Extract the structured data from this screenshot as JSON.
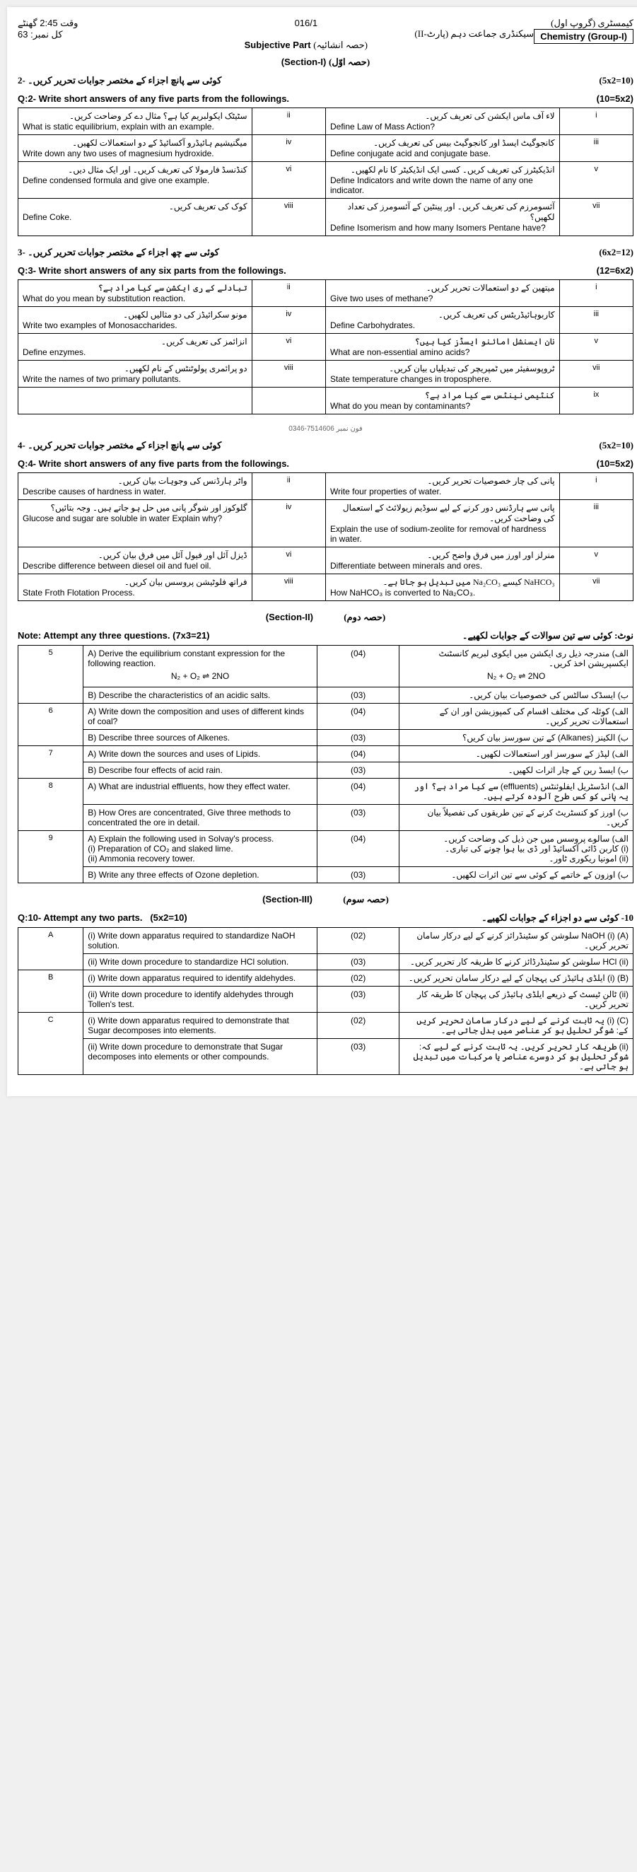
{
  "header": {
    "time_label": "وقت",
    "time": "2:45 گھنٹے",
    "total_label": "کل نمبر",
    "total": "63",
    "code": "016/1",
    "class_urdu": "سیکنڈری جماعت دہم (پارٹ-II)",
    "subject_part": "Subjective Part",
    "subject_part_urdu": "(حصہ انشائیہ)",
    "subject": "Chemistry (Group-I)",
    "subject_urdu": "کیمسٹری (گروپ اول)",
    "section1": "(Section-I)",
    "section1_urdu": "(حصہ اوّل)"
  },
  "q2": {
    "num": "-2",
    "urdu_inst": "کوئی سے پانچ اجزاء کے مختصر جوابات تحریر کریں۔",
    "marks": "(10=5x2)",
    "eng_inst": "Q:2- Write short answers of any five parts from the followings.",
    "eng_marks": "(10=5x2)",
    "rows": [
      {
        "n1": "ii",
        "e1": "What is static equilibrium, explain with an example.",
        "u1": "سٹیٹک ایکولبریم کیا ہے؟ مثال دے کر وضاحت کریں۔",
        "n2": "i",
        "e2": "Define Law of Mass Action?",
        "u2": "لاء آف ماس ایکشن کی تعریف کریں۔"
      },
      {
        "n1": "iv",
        "e1": "Write down any two uses of magnesium hydroxide.",
        "u1": "میگنیشیم ہائیڈرو آکسائیڈ کے دو استعمالات لکھیں۔",
        "n2": "iii",
        "e2": "Define conjugate acid and conjugate base.",
        "u2": "کانجوگیٹ ایسڈ اور کانجوگیٹ بیس کی تعریف کریں۔"
      },
      {
        "n1": "vi",
        "e1": "Define condensed formula and give one example.",
        "u1": "کنڈنسڈ فارمولا کی تعریف کریں۔ اور ایک مثال دیں۔",
        "n2": "v",
        "e2": "Define Indicators and write down the name of any one indicator.",
        "u2": "انڈیکیٹرز کی تعریف کریں۔ کسی ایک انڈیکیٹر کا نام لکھیں۔"
      },
      {
        "n1": "viii",
        "e1": "Define Coke.",
        "u1": "کوک کی تعریف کریں۔",
        "n2": "vii",
        "e2": "Define Isomerism and how many Isomers Pentane have?",
        "u2": "آئسومرزم کی تعریف کریں۔ اور پینٹین کے آئسومرز کی تعداد لکھیں؟"
      }
    ]
  },
  "q3": {
    "num": "-3",
    "urdu_inst": "کوئی سے چھ اجزاء کے مختصر جوابات تحریر کریں۔",
    "marks": "(12=6x2)",
    "eng_inst": "Q:3- Write short answers of any six parts from the followings.",
    "eng_marks": "(12=6x2)",
    "rows": [
      {
        "n1": "ii",
        "e1": "What do you mean by substitution reaction.",
        "u1": "تبادلے کے ری ایکشن سے کیا مراد ہے؟",
        "n2": "i",
        "e2": "Give two uses of methane?",
        "u2": "میتھین کے دو استعمالات تحریر کریں۔"
      },
      {
        "n1": "iv",
        "e1": "Write two examples of Monosaccharides.",
        "u1": "مونو سکرائیڈز کی دو مثالیں لکھیں۔",
        "n2": "iii",
        "e2": "Define Carbohydrates.",
        "u2": "کاربوہائیڈریٹس کی تعریف کریں۔"
      },
      {
        "n1": "vi",
        "e1": "Define enzymes.",
        "u1": "انزائمز کی تعریف کریں۔",
        "n2": "v",
        "e2": "What are non-essential amino acids?",
        "u2": "نان ایسنشل امائنو ایسڈز کیا ہیں؟"
      },
      {
        "n1": "viii",
        "e1": "Write the names of two primary pollutants.",
        "u1": "دو پرائمری پولوٹنٹس کے نام لکھیں۔",
        "n2": "vii",
        "e2": "State temperature changes in troposphere.",
        "u2": "ٹروپوسفیئر میں ٹمپریچر کی تبدیلیاں بیان کریں۔"
      },
      {
        "n1": "",
        "e1": "",
        "u1": "",
        "n2": "ix",
        "e2": "What do you mean by contaminants?",
        "u2": "کنٹیمی نینٹس سے کیا مراد ہے؟"
      }
    ],
    "stamp": "0346-7514606 فون نمبر"
  },
  "q4": {
    "num": "-4",
    "urdu_inst": "کوئی سے پانچ اجزاء کے مختصر جوابات تحریر کریں۔",
    "marks": "(10=5x2)",
    "eng_inst": "Q:4- Write short answers of any five parts from the followings.",
    "eng_marks": "(10=5x2)",
    "rows": [
      {
        "n1": "ii",
        "e1": "Describe causes of hardness in water.",
        "u1": "واٹر ہارڈنس کی وجوہات بیان کریں۔",
        "n2": "i",
        "e2": "Write four properties of water.",
        "u2": "پانی کی چار خصوصیات تحریر کریں۔"
      },
      {
        "n1": "iv",
        "e1": "Glucose and sugar are soluble in water Explain why?",
        "u1": "گلوکوز اور شوگر پانی میں حل ہو جاتے ہیں۔ وجہ بتائیں؟",
        "n2": "iii",
        "e2": "Explain the use of sodium-zeolite for removal of hardness in water.",
        "u2": "پانی سے ہارڈنس دور کرنے کے لیے سوڈیم زیولائٹ کے استعمال کی وضاحت کریں۔"
      },
      {
        "n1": "vi",
        "e1": "Describe difference between diesel oil and fuel oil.",
        "u1": "ڈیزل آئل اور فیول آئل میں فرق بیان کریں۔",
        "n2": "v",
        "e2": "Differentiate between minerals and ores.",
        "u2": "منرلز اور اورز میں فرق واضح کریں۔"
      },
      {
        "n1": "viii",
        "e1": "State Froth Flotation Process.",
        "u1": "فراتھ فلوٹیشن پروسس بیان کریں۔",
        "n2": "vii",
        "e2": "How NaHCO₃ is converted to Na₂CO₃.",
        "u2": "NaHCO₃ کیسے Na₂CO₃ میں تبدیل ہو جاتا ہے۔"
      }
    ]
  },
  "section2": {
    "title": "(Section-II)",
    "title_urdu": "(حصہ دوم)",
    "note_eng": "Note: Attempt any three questions.",
    "note_marks": "(7x3=21)",
    "note_urdu": "نوٹ: کوئی سے تین سوالات کے جوابات لکھیے۔"
  },
  "longq": [
    {
      "q": "5",
      "parts": [
        {
          "l": "A)",
          "e": "Derive the equilibrium constant expression for the following reaction.",
          "eq": "N₂ + O₂ ⇌ 2NO",
          "m": "(04)",
          "u": "الف) مندرجہ ذیل ری ایکشن میں ایکوی لبریم کانسٹنٹ ایکسپریشن اخذ کریں۔"
        },
        {
          "l": "B)",
          "e": "Describe the characteristics of an acidic salts.",
          "m": "(03)",
          "u": "ب) ایسڈک سالٹس کی خصوصیات بیان کریں۔"
        }
      ]
    },
    {
      "q": "6",
      "parts": [
        {
          "l": "A)",
          "e": "Write down the composition and uses of different kinds of coal?",
          "m": "(04)",
          "u": "الف) کوئلہ کی مختلف اقسام کی کمپوزیشن اور ان کے استعمالات تحریر کریں۔"
        },
        {
          "l": "B)",
          "e": "Describe three sources of Alkenes.",
          "m": "(03)",
          "u": "ب) الکینز (Alkanes) کے تین سورسز بیان کریں؟"
        }
      ]
    },
    {
      "q": "7",
      "parts": [
        {
          "l": "A)",
          "e": "Write down the sources and uses of Lipids.",
          "m": "(04)",
          "u": "الف) لپڈز کے سورسز اور استعمالات لکھیں۔"
        },
        {
          "l": "B)",
          "e": "Describe four effects of acid rain.",
          "m": "(03)",
          "u": "ب) ایسڈ رین کے چار اثرات لکھیں۔"
        }
      ]
    },
    {
      "q": "8",
      "parts": [
        {
          "l": "A)",
          "e": "What are industrial effluents, how they effect water.",
          "m": "(04)",
          "u": "الف) انڈسٹریل ایفلوئنٹس (effluents) سے کیا مراد ہے؟ اور یہ پانی کو کس طرح آلودہ کرتے ہیں۔"
        },
        {
          "l": "B)",
          "e": "How Ores are concentrated, Give three methods to concentrated the ore in detail.",
          "m": "(03)",
          "u": "ب) اورز کو کنسٹریٹ کرنے کے تین طریقوں کی تفصیلاً بیان کریں۔"
        }
      ]
    },
    {
      "q": "9",
      "parts": [
        {
          "l": "A)",
          "e": "Explain the following used in Solvay's process.\n(i) Preparation of CO₂ and slaked lime.\n(ii) Ammonia recovery tower.",
          "m": "(04)",
          "u": "الف) سالوے پروسس میں جن ذیل کی وضاحت کریں۔\n(i) کاربن ڈائی آکسائیڈ اور ڈی بیا ہوا چونے کی تیاری۔\n(ii) امونیا ریکوری ٹاور۔"
        },
        {
          "l": "B)",
          "e": "Write any three effects of Ozone depletion.",
          "m": "(03)",
          "u": "ب) اوزون کے خاتمے کے کوئی سے تین اثرات لکھیں۔"
        }
      ]
    }
  ],
  "section3": {
    "title": "(Section-III)",
    "title_urdu": "(حصہ سوم)"
  },
  "q10": {
    "eng_inst": "Q:10- Attempt any two parts.",
    "marks": "(5x2=10)",
    "urdu_inst": "10- کوئی سے دو اجزاء کے جوابات لکھیے۔",
    "rows": [
      {
        "q": "A",
        "r": [
          {
            "l": "(i)",
            "e": "Write down apparatus required to standardize NaOH solution.",
            "m": "(02)",
            "u": "(A) NaOH (i) سلوشن کو سٹینڈرائز کرنے کے لیے درکار سامان تحریر کریں۔"
          },
          {
            "l": "(ii)",
            "e": "Write down procedure to standardize HCl solution.",
            "m": "(03)",
            "u": "HCl (ii) سلوشن کو سٹینڈرڈائز کرنے کا طریقہ کار تحریر کریں۔"
          }
        ]
      },
      {
        "q": "B",
        "r": [
          {
            "l": "(i)",
            "e": "Write down apparatus required to identify aldehydes.",
            "m": "(02)",
            "u": "(B) (i) ایلڈی ہائیڈز کی پہچان کے لیے درکار سامان تحریر کریں۔"
          },
          {
            "l": "(ii)",
            "e": "Write down procedure to identify aldehydes through Tollen's test.",
            "m": "(03)",
            "u": "(ii) ٹالن ٹیسٹ کے ذریعے ایلڈی ہائیڈز کی پہچان کا طریقہ کار تحریر کریں۔"
          }
        ]
      },
      {
        "q": "C",
        "r": [
          {
            "l": "(i)",
            "e": "Write down apparatus required to demonstrate that Sugar decomposes into elements.",
            "m": "(02)",
            "u": "(C) (i) یہ ثابت کرنے کے لیے درکار سامان تحریر کریں کے: شوگر تحلیل ہو کر عناصر میں بدل جاتی ہے۔"
          },
          {
            "l": "(ii)",
            "e": "Write down procedure to demonstrate that Sugar decomposes into elements or other compounds.",
            "m": "(03)",
            "u": "(ii) طریقہ کار تحریر کریں۔ یہ ثابت کرنے کے لیے کہ: شوگر تحلیل ہو کر دوسرے عناصر یا مرکبات میں تبدیل ہو جاتی ہے۔"
          }
        ]
      }
    ]
  }
}
